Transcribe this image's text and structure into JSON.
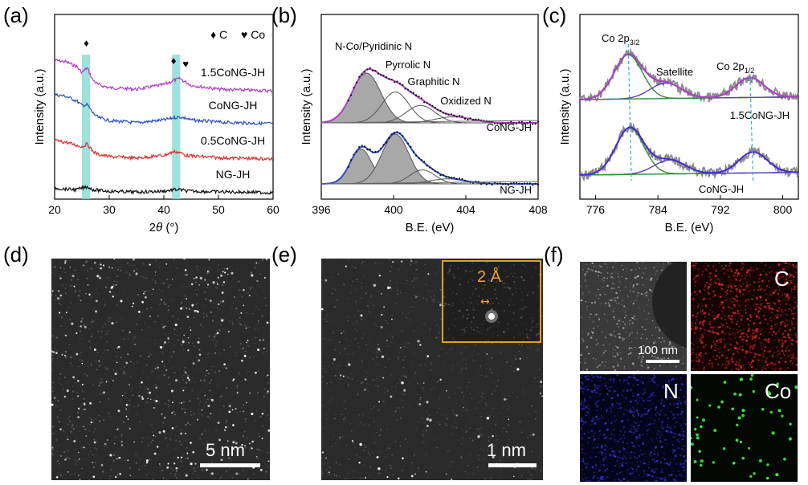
{
  "panels": {
    "a": {
      "label": "(a)"
    },
    "b": {
      "label": "(b)"
    },
    "c": {
      "label": "(c)"
    },
    "d": {
      "label": "(d)",
      "scale": "5 nm"
    },
    "e": {
      "label": "(e)",
      "scale": "1 nm",
      "inset_distance": "2 Å"
    },
    "f": {
      "label": "(f)",
      "scale": "100 nm",
      "maps": [
        "C",
        "N",
        "Co"
      ]
    }
  },
  "chart_data": [
    {
      "id": "a",
      "type": "line",
      "xlabel": "2θ (°)",
      "ylabel": "Intensity (a.u.)",
      "xlim": [
        20,
        60
      ],
      "xticks": [
        20,
        30,
        40,
        50,
        60
      ],
      "grid": false,
      "legend": [
        {
          "symbol": "♦",
          "text": "C"
        },
        {
          "symbol": "♥",
          "text": "Co"
        }
      ],
      "highlight_bands": [
        [
          25,
          26.5
        ],
        [
          41.5,
          43
        ]
      ],
      "series": [
        {
          "name": "1.5CoNG-JH",
          "color": "#b03cc8",
          "offset": 3,
          "x": [
            20,
            22,
            24,
            25,
            26,
            27,
            28,
            30,
            35,
            40,
            42,
            43,
            44,
            45,
            50,
            55,
            60
          ],
          "values": [
            1.0,
            0.95,
            0.8,
            0.6,
            0.75,
            0.35,
            0.2,
            0.1,
            0.05,
            0.2,
            0.35,
            0.4,
            0.28,
            0.18,
            0.05,
            0.02,
            0.0
          ]
        },
        {
          "name": "CoNG-JH",
          "color": "#2b4fc4",
          "offset": 2,
          "x": [
            20,
            22,
            24,
            25,
            26,
            27,
            28,
            30,
            35,
            40,
            42,
            43,
            44,
            45,
            50,
            55,
            60
          ],
          "values": [
            0.95,
            0.9,
            0.75,
            0.6,
            0.62,
            0.35,
            0.2,
            0.1,
            0.03,
            0.12,
            0.2,
            0.22,
            0.18,
            0.12,
            0.05,
            0.02,
            0.0
          ]
        },
        {
          "name": "0.5CoNG-JH",
          "color": "#dd2b2b",
          "offset": 1,
          "x": [
            20,
            22,
            24,
            25,
            26,
            27,
            28,
            30,
            35,
            40,
            42,
            43,
            44,
            45,
            50,
            55,
            60
          ],
          "values": [
            0.6,
            0.55,
            0.45,
            0.4,
            0.5,
            0.25,
            0.15,
            0.08,
            0.03,
            0.12,
            0.25,
            0.2,
            0.12,
            0.1,
            0.04,
            0.02,
            0.0
          ]
        },
        {
          "name": "NG-JH",
          "color": "#111111",
          "offset": 0,
          "x": [
            20,
            22,
            24,
            25,
            26,
            27,
            28,
            30,
            35,
            40,
            42,
            43,
            44,
            45,
            50,
            55,
            60
          ],
          "values": [
            0.15,
            0.12,
            0.1,
            0.15,
            0.2,
            0.1,
            0.08,
            0.05,
            0.02,
            0.05,
            0.1,
            0.1,
            0.06,
            0.05,
            0.03,
            0.02,
            0.0
          ]
        }
      ]
    },
    {
      "id": "b",
      "type": "line",
      "xlabel": "B.E. (eV)",
      "ylabel": "Intensity (a.u.)",
      "xlim": [
        396,
        408
      ],
      "xticks": [
        396,
        400,
        404,
        408
      ],
      "grid": false,
      "annotations": [
        "N-Co/Pyridinic N",
        "Pyrrolic N",
        "Graphitic N",
        "Oxidized N"
      ],
      "series": [
        {
          "name": "CoNG-JH",
          "color": "#b03cc8",
          "components": [
            {
              "label": "N-Co/Pyridinic N",
              "center": 398.5,
              "height": 1.0,
              "width": 0.8,
              "filled": true
            },
            {
              "label": "Pyrrolic N",
              "center": 400.1,
              "height": 0.62,
              "width": 0.75,
              "filled": false
            },
            {
              "label": "Graphitic N",
              "center": 401.5,
              "height": 0.35,
              "width": 0.8,
              "filled": false
            },
            {
              "label": "Oxidized N",
              "center": 403.3,
              "height": 0.12,
              "width": 1.0,
              "filled": false
            }
          ]
        },
        {
          "name": "NG-JH",
          "color": "#2b4fc4",
          "components": [
            {
              "label": "N-Co/Pyridinic N",
              "center": 398.2,
              "height": 0.7,
              "width": 0.6,
              "filled": true
            },
            {
              "label": "Pyrrolic N",
              "center": 400.1,
              "height": 1.0,
              "width": 0.75,
              "filled": true
            },
            {
              "label": "Graphitic N",
              "center": 401.6,
              "height": 0.28,
              "width": 0.7,
              "filled": false
            },
            {
              "label": "Oxidized N",
              "center": 403.0,
              "height": 0.1,
              "width": 1.0,
              "filled": false
            }
          ]
        }
      ]
    },
    {
      "id": "c",
      "type": "line",
      "xlabel": "B.E. (eV)",
      "ylabel": "Intensity (a.u.)",
      "xlim": [
        774,
        802
      ],
      "xticks": [
        776,
        784,
        792,
        800
      ],
      "grid": false,
      "annotations": [
        "Co 2p3/2",
        "Satellite",
        "Co 2p1/2"
      ],
      "series": [
        {
          "name": "1.5CoNG-JH",
          "color": "#b03cc8",
          "peaks": [
            {
              "center": 780.2,
              "height": 1.0,
              "width": 1.8
            },
            {
              "center": 785.0,
              "height": 0.35,
              "width": 2.0
            },
            {
              "center": 795.8,
              "height": 0.45,
              "width": 1.8
            }
          ]
        },
        {
          "name": "CoNG-JH",
          "color": "#4a2bd0",
          "peaks": [
            {
              "center": 780.4,
              "height": 1.0,
              "width": 1.8
            },
            {
              "center": 785.5,
              "height": 0.3,
              "width": 2.0
            },
            {
              "center": 796.2,
              "height": 0.45,
              "width": 1.8
            }
          ]
        }
      ]
    }
  ]
}
